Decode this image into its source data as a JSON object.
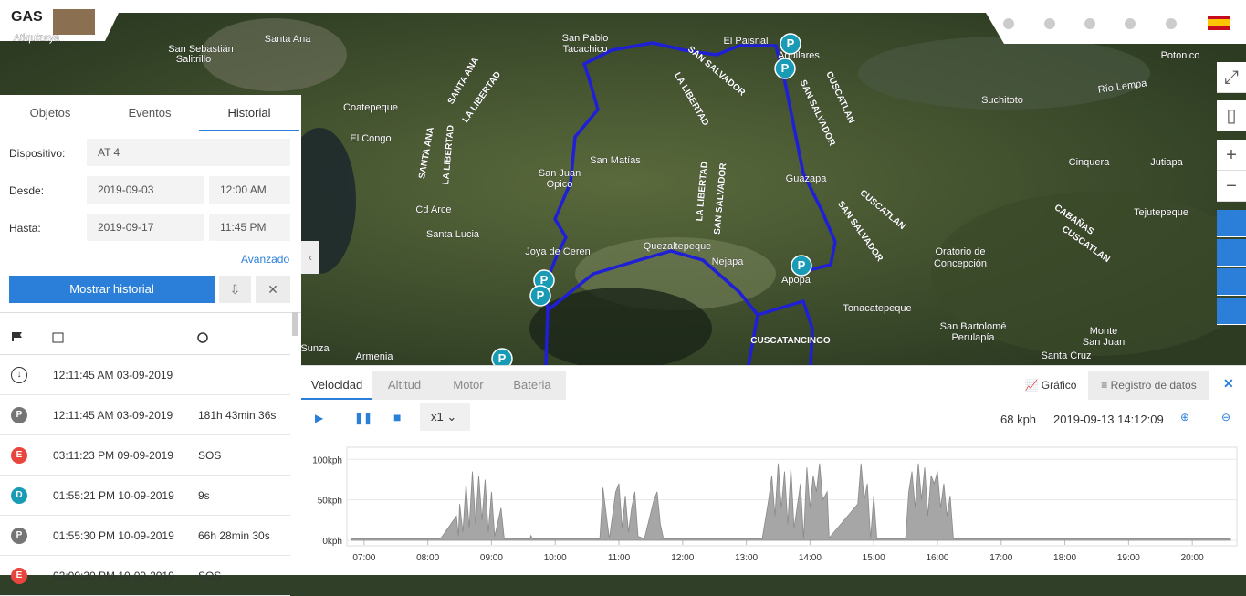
{
  "header": {
    "logo": "GAS"
  },
  "map": {
    "marker": "P",
    "zoom_in": "+",
    "zoom_out": "−",
    "labels": [
      "Atiquizaya",
      "Santa Ana",
      "San Sebastián",
      "Salitrillo",
      "Coatepeque",
      "El Congo",
      "San Pablo",
      "Tacachico",
      "El Paisnal",
      "Aguilares",
      "Potonico",
      "Suchitoto",
      "Cinquera",
      "Jutiapa",
      "San Matías",
      "San Juan",
      "Opico",
      "Cd Arce",
      "Santa Lucia",
      "Joya de Ceren",
      "Quezaltepeque",
      "Nejapa",
      "Apopa",
      "Guazapa",
      "Tejutepeque",
      "Oratorio de",
      "Concepción",
      "Tonacatepeque",
      "San Bartolomé",
      "Perulapía",
      "Monte",
      "San Juan",
      "Santa Cruz",
      "Armenia",
      "Sunza",
      "Río Lempa",
      "SANTA ANA",
      "LA LIBERTAD",
      "LA LIBERTAD",
      "SANTA ANA",
      "LA LIBERTAD",
      "SAN SALVADOR",
      "LA LIBERTAD",
      "SAN SALVADOR",
      "SAN SALVADOR",
      "CUSCATLAN",
      "CUSCATLAN",
      "SAN SALVADOR",
      "CABAÑAS",
      "CUSCATLAN",
      "CUSCATANCINGO"
    ]
  },
  "sidebar": {
    "tabs": [
      "Objetos",
      "Eventos",
      "Historial"
    ],
    "active_tab": 2,
    "device_label": "Dispositivo:",
    "device": "AT 4",
    "from_label": "Desde:",
    "from_date": "2019-09-03",
    "from_time": "12:00 AM",
    "to_label": "Hasta:",
    "to_date": "2019-09-17",
    "to_time": "11:45 PM",
    "advanced": "Avanzado",
    "show_button": "Mostrar historial"
  },
  "events": [
    {
      "time": "12:11:45 AM 03-09-2019"
    },
    {
      "badge": "P",
      "color": "#757575",
      "time": "12:11:45 AM 03-09-2019",
      "info": "181h 43min 36s"
    },
    {
      "badge": "E",
      "color": "#e9453f",
      "time": "03:11:23 PM 09-09-2019",
      "info": "SOS"
    },
    {
      "badge": "D",
      "color": "#1a9bb5",
      "time": "01:55:21 PM 10-09-2019",
      "info": "9s"
    },
    {
      "badge": "P",
      "color": "#757575",
      "time": "01:55:30 PM 10-09-2019",
      "info": "66h 28min 30s"
    },
    {
      "badge": "E",
      "color": "#e9453f",
      "time": "02:00:30 PM 10-09-2019",
      "info": "SOS"
    }
  ],
  "bottom": {
    "tabs": [
      "Velocidad",
      "Altitud",
      "Motor",
      "Bateria"
    ],
    "active_tab": 0,
    "views": [
      "Gráfico",
      "Registro de datos"
    ],
    "speed_multiplier": "x1",
    "speed": "68 kph",
    "datetime": "2019-09-13 14:12:09"
  },
  "chart_data": {
    "type": "area",
    "color": "#a6a6a6",
    "grid": true,
    "x": [
      6.8,
      8.2,
      8.45,
      8.48,
      8.5,
      8.55,
      8.6,
      8.65,
      8.7,
      8.75,
      8.8,
      8.85,
      8.9,
      8.95,
      9.0,
      9.05,
      9.15,
      9.2,
      9.6,
      9.62,
      9.64,
      10.7,
      10.75,
      10.82,
      10.85,
      10.95,
      11.0,
      11.05,
      11.1,
      11.15,
      11.2,
      11.25,
      11.3,
      11.4,
      11.55,
      11.6,
      11.65,
      11.7,
      13.25,
      13.35,
      13.4,
      13.45,
      13.5,
      13.55,
      13.6,
      13.65,
      13.7,
      13.75,
      13.85,
      13.9,
      13.95,
      14.0,
      14.05,
      14.1,
      14.15,
      14.2,
      14.27,
      14.3,
      14.75,
      14.8,
      14.85,
      14.9,
      14.95,
      15.0,
      15.05,
      15.5,
      15.55,
      15.6,
      15.65,
      15.7,
      15.75,
      15.8,
      15.85,
      15.9,
      15.95,
      16.0,
      16.05,
      16.1,
      16.15,
      16.2,
      16.25,
      20.6
    ],
    "values": [
      2,
      2,
      30,
      5,
      45,
      10,
      70,
      15,
      85,
      20,
      80,
      25,
      75,
      10,
      60,
      5,
      40,
      2,
      2,
      6,
      2,
      2,
      65,
      20,
      2,
      60,
      70,
      15,
      55,
      10,
      40,
      60,
      5,
      2,
      50,
      60,
      20,
      2,
      2,
      50,
      80,
      30,
      95,
      40,
      85,
      20,
      90,
      15,
      70,
      2,
      90,
      40,
      80,
      60,
      95,
      50,
      60,
      3,
      45,
      95,
      50,
      70,
      2,
      55,
      2,
      2,
      60,
      85,
      40,
      95,
      50,
      90,
      30,
      80,
      70,
      85,
      40,
      70,
      30,
      55,
      2,
      2
    ],
    "xlim": [
      6.73,
      20.7
    ],
    "xticks": [
      {
        "value": 7,
        "label": "07:00"
      },
      {
        "value": 8,
        "label": "08:00"
      },
      {
        "value": 9,
        "label": "09:00"
      },
      {
        "value": 10,
        "label": "10:00"
      },
      {
        "value": 11,
        "label": "11:00"
      },
      {
        "value": 12,
        "label": "12:00"
      },
      {
        "value": 13,
        "label": "13:00"
      },
      {
        "value": 14,
        "label": "14:00"
      },
      {
        "value": 15,
        "label": "15:00"
      },
      {
        "value": 16,
        "label": "16:00"
      },
      {
        "value": 17,
        "label": "17:00"
      },
      {
        "value": 18,
        "label": "18:00"
      },
      {
        "value": 19,
        "label": "19:00"
      },
      {
        "value": 20,
        "label": "20:00"
      }
    ],
    "ylim": [
      0,
      115
    ],
    "yticks": [
      {
        "value": 0,
        "label": "0kph"
      },
      {
        "value": 50,
        "label": "50kph"
      },
      {
        "value": 100,
        "label": "100kph"
      }
    ]
  }
}
